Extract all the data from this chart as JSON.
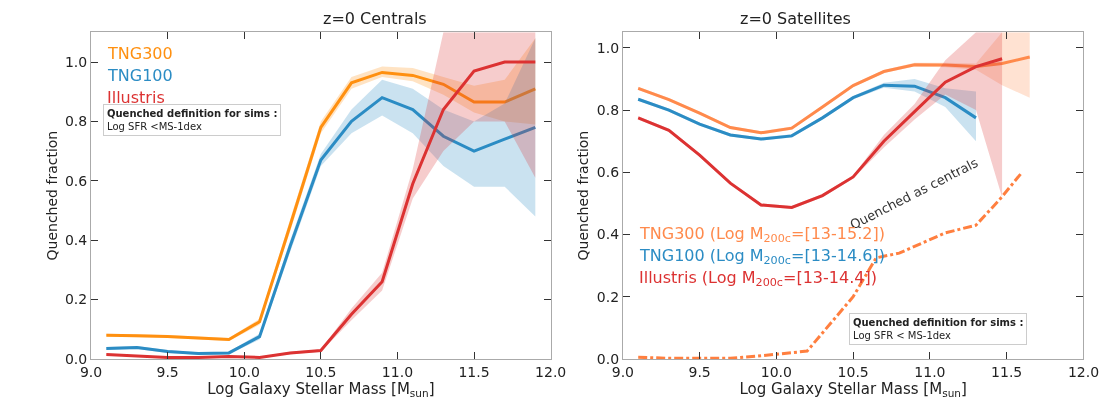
{
  "chart_data": [
    {
      "type": "line",
      "title": "z=0 Centrals",
      "xlabel": "Log Galaxy Stellar Mass [M$_{sun}$]",
      "ylabel": "Quenched fraction",
      "xlim": [
        9.0,
        12.0
      ],
      "xticks": [
        {
          "value": 9.0,
          "label": "9.0"
        },
        {
          "value": 9.5,
          "label": "9.5"
        },
        {
          "value": 10.0,
          "label": "10.0"
        },
        {
          "value": 10.5,
          "label": "10.5"
        },
        {
          "value": 11.0,
          "label": "11.0"
        },
        {
          "value": 11.5,
          "label": "11.5"
        },
        {
          "value": 12.0,
          "label": "12.0"
        }
      ],
      "ylim": [
        0,
        1.1
      ],
      "yticks": [
        {
          "value": 0,
          "label": "0.0"
        },
        {
          "value": 0.2,
          "label": "0.2"
        },
        {
          "value": 0.4,
          "label": "0.4"
        },
        {
          "value": 0.6,
          "label": "0.6"
        },
        {
          "value": 0.8,
          "label": "0.8"
        },
        {
          "value": 1.0,
          "label": "1.0"
        }
      ],
      "legend": "top left",
      "marker": "none",
      "line_style": "solid",
      "annotations": [
        "Quenched definition for sims :\nLog SFR <MS-1dex"
      ],
      "series": [
        {
          "name": "TNG300",
          "color": "#ff9010",
          "x": [
            9.1,
            9.3,
            9.5,
            9.7,
            9.9,
            10.1,
            10.3,
            10.5,
            10.7,
            10.9,
            11.1,
            11.3,
            11.5,
            11.7,
            11.9
          ],
          "values": [
            0.08,
            0.078,
            0.075,
            0.07,
            0.065,
            0.125,
            0.45,
            0.78,
            0.93,
            0.965,
            0.955,
            0.925,
            0.865,
            0.865,
            0.91
          ],
          "lower": [
            0.075,
            0.073,
            0.07,
            0.065,
            0.06,
            0.115,
            0.43,
            0.76,
            0.91,
            0.95,
            0.935,
            0.89,
            0.83,
            0.8,
            0.79
          ],
          "upper": [
            0.085,
            0.083,
            0.08,
            0.075,
            0.07,
            0.135,
            0.47,
            0.8,
            0.95,
            0.985,
            0.98,
            0.95,
            0.92,
            0.94,
            1.08
          ]
        },
        {
          "name": "TNG100",
          "color": "#2b8cc4",
          "x": [
            9.1,
            9.3,
            9.5,
            9.7,
            9.9,
            10.1,
            10.3,
            10.5,
            10.7,
            10.9,
            11.1,
            11.3,
            11.5,
            11.7,
            11.9
          ],
          "values": [
            0.035,
            0.038,
            0.025,
            0.018,
            0.02,
            0.075,
            0.38,
            0.67,
            0.8,
            0.88,
            0.84,
            0.75,
            0.7,
            0.74,
            0.78
          ],
          "lower": [
            0.03,
            0.033,
            0.02,
            0.014,
            0.016,
            0.065,
            0.36,
            0.65,
            0.76,
            0.82,
            0.76,
            0.65,
            0.58,
            0.58,
            0.48
          ],
          "upper": [
            0.04,
            0.043,
            0.03,
            0.022,
            0.024,
            0.085,
            0.4,
            0.69,
            0.84,
            0.94,
            0.91,
            0.84,
            0.8,
            0.86,
            1.08
          ]
        },
        {
          "name": "Illustris",
          "color": "#dc3232",
          "x": [
            9.1,
            9.3,
            9.5,
            9.7,
            9.9,
            10.1,
            10.3,
            10.5,
            10.7,
            10.9,
            11.1,
            11.3,
            11.5,
            11.7,
            11.9
          ],
          "values": [
            0.015,
            0.01,
            0.005,
            0.005,
            0.008,
            0.005,
            0.02,
            0.028,
            0.15,
            0.26,
            0.59,
            0.84,
            0.97,
            1.0,
            1.0
          ],
          "lower": [
            0.012,
            0.008,
            0.003,
            0.003,
            0.006,
            0.003,
            0.016,
            0.024,
            0.13,
            0.23,
            0.54,
            0.7,
            0.8,
            0.8,
            0.61
          ],
          "upper": [
            0.018,
            0.012,
            0.007,
            0.007,
            0.01,
            0.007,
            0.024,
            0.032,
            0.17,
            0.29,
            0.64,
            1.1,
            1.1,
            1.1,
            1.1
          ]
        }
      ]
    },
    {
      "type": "line",
      "title": "z=0 Satellites",
      "xlabel": "Log Galaxy Stellar Mass [M$_{sun}$]",
      "ylabel": "Quenched fraction",
      "xlim": [
        9.0,
        12.0
      ],
      "xticks": [
        {
          "value": 9.0,
          "label": "9.0"
        },
        {
          "value": 9.5,
          "label": "9.5"
        },
        {
          "value": 10.0,
          "label": "10.0"
        },
        {
          "value": 10.5,
          "label": "10.5"
        },
        {
          "value": 11.0,
          "label": "11.0"
        },
        {
          "value": 11.5,
          "label": "11.5"
        },
        {
          "value": 12.0,
          "label": "12.0"
        }
      ],
      "ylim": [
        0,
        1.05
      ],
      "yticks": [
        {
          "value": 0,
          "label": "0.0"
        },
        {
          "value": 0.2,
          "label": "0.2"
        },
        {
          "value": 0.4,
          "label": "0.4"
        },
        {
          "value": 0.6,
          "label": "0.6"
        },
        {
          "value": 0.8,
          "label": "0.8"
        },
        {
          "value": 1.0,
          "label": "1.0"
        }
      ],
      "legend": "left",
      "marker": "none",
      "line_style": "solid",
      "annotations": [
        "Quenched definition for sims :\nLog SFR < MS-1dex"
      ],
      "series": [
        {
          "name": "TNG300 (Log M$_{200c}$=[13-15.2])",
          "color": "#ff8a4c",
          "x": [
            9.1,
            9.3,
            9.5,
            9.7,
            9.9,
            10.1,
            10.3,
            10.5,
            10.7,
            10.9,
            11.1,
            11.3,
            11.47,
            11.65
          ],
          "values": [
            0.87,
            0.834,
            0.79,
            0.744,
            0.727,
            0.742,
            0.81,
            0.879,
            0.924,
            0.946,
            0.945,
            0.94,
            0.95,
            0.971
          ],
          "lower": [
            0.865,
            0.829,
            0.785,
            0.739,
            0.722,
            0.737,
            0.805,
            0.874,
            0.919,
            0.94,
            0.938,
            0.93,
            0.88,
            0.84
          ],
          "upper": [
            0.875,
            0.839,
            0.795,
            0.749,
            0.732,
            0.747,
            0.815,
            0.884,
            0.929,
            0.952,
            0.952,
            0.95,
            1.05,
            1.05
          ]
        },
        {
          "name": "TNG100 (Log M$_{200c}$=[13-14.6])",
          "color": "#2b8cc4",
          "x": [
            9.1,
            9.3,
            9.5,
            9.7,
            9.9,
            10.1,
            10.3,
            10.5,
            10.7,
            10.9,
            11.1,
            11.3
          ],
          "values": [
            0.835,
            0.8,
            0.755,
            0.72,
            0.707,
            0.717,
            0.775,
            0.84,
            0.88,
            0.877,
            0.84,
            0.775
          ],
          "lower": [
            0.83,
            0.795,
            0.75,
            0.715,
            0.702,
            0.712,
            0.77,
            0.835,
            0.872,
            0.86,
            0.81,
            0.7
          ],
          "upper": [
            0.84,
            0.805,
            0.76,
            0.725,
            0.712,
            0.722,
            0.78,
            0.845,
            0.888,
            0.9,
            0.87,
            0.86
          ]
        },
        {
          "name": "Illustris (Log M$_{200c}$=[13-14.4])",
          "color": "#dc3232",
          "x": [
            9.1,
            9.3,
            9.5,
            9.7,
            9.9,
            10.1,
            10.3,
            10.5,
            10.7,
            10.9,
            11.1,
            11.3,
            11.47
          ],
          "values": [
            0.775,
            0.735,
            0.655,
            0.565,
            0.495,
            0.487,
            0.525,
            0.585,
            0.7,
            0.795,
            0.89,
            0.94,
            0.965
          ],
          "lower": [
            0.77,
            0.73,
            0.65,
            0.56,
            0.49,
            0.482,
            0.52,
            0.58,
            0.68,
            0.77,
            0.85,
            0.8,
            0.52
          ],
          "upper": [
            0.78,
            0.74,
            0.66,
            0.57,
            0.5,
            0.492,
            0.53,
            0.59,
            0.72,
            0.82,
            0.96,
            1.05,
            1.05
          ]
        },
        {
          "name": "Quenched as centrals",
          "color": "#ff7f3f",
          "line_style": "dashdot",
          "x": [
            9.1,
            9.3,
            9.5,
            9.7,
            9.9,
            10.1,
            10.2,
            10.5,
            10.65,
            10.8,
            11.1,
            11.3,
            11.45,
            11.6
          ],
          "values": [
            0.005,
            0.002,
            0.002,
            0.002,
            0.01,
            0.02,
            0.025,
            0.2,
            0.325,
            0.34,
            0.405,
            0.43,
            0.51,
            0.6
          ]
        }
      ]
    }
  ]
}
